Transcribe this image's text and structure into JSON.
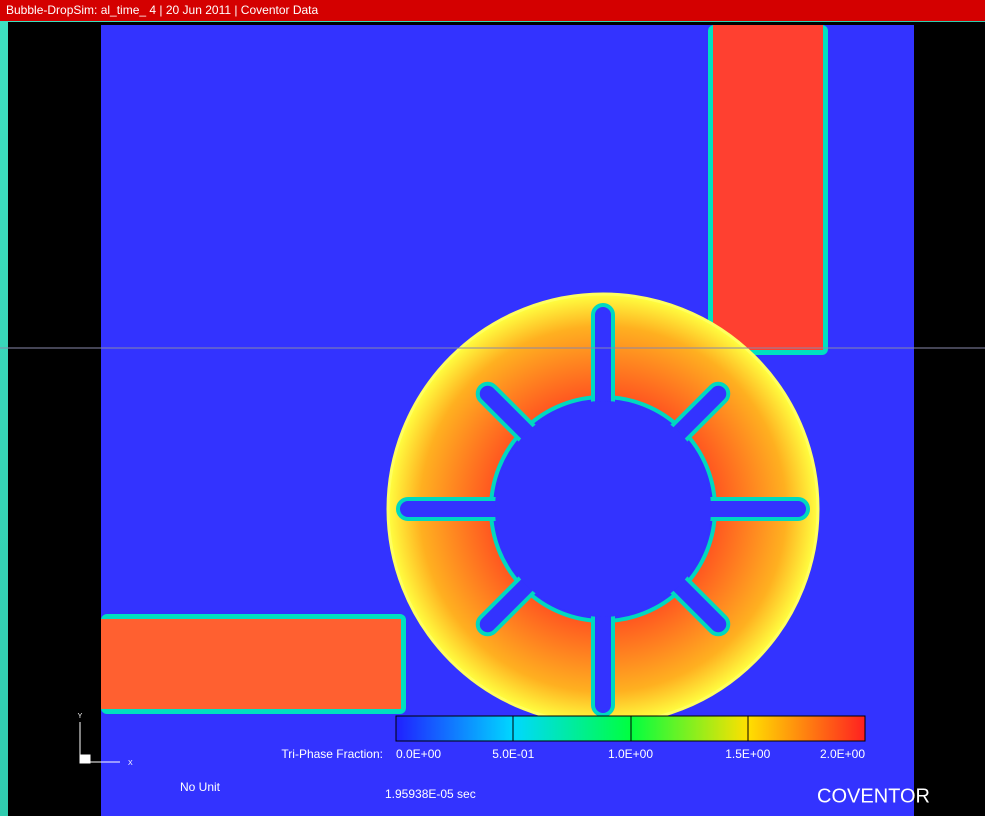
{
  "title_bar": "Bubble-DropSim: al_time_ 4 | 20 Jun 2011 | Coventor Data",
  "colorbar": {
    "label": "Tri-Phase Fraction:",
    "ticks": [
      "0.0E+00",
      "5.0E-01",
      "1.0E+00",
      "1.5E+00",
      "2.0E+00"
    ]
  },
  "axes": {
    "y": "Y",
    "x": "X"
  },
  "unit": "No Unit",
  "time": "1.95938E-05 sec",
  "brand": "COVENTOR"
}
